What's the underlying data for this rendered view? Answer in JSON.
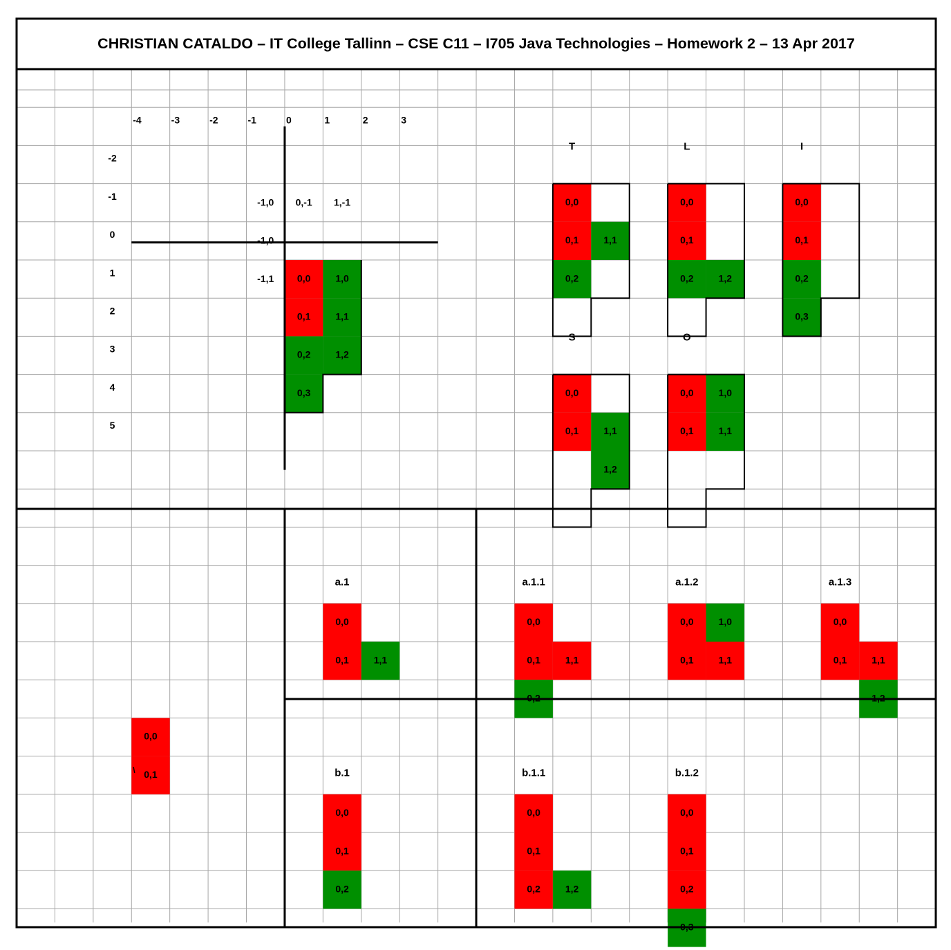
{
  "title": "CHRISTIAN CATALDO – IT College Tallinn – CSE C11 – I705 Java Technologies – Homework 2 – 13 Apr 2017",
  "colors": {
    "red": "#ff0000",
    "green": "#008f00",
    "grid": "#a6a6a6",
    "border": "#000000"
  },
  "axes": {
    "x_ticks": [
      "-4",
      "-3",
      "-2",
      "-1",
      "0",
      "1",
      "2",
      "3"
    ],
    "y_ticks": [
      "-2",
      "-1",
      "0",
      "1",
      "2",
      "3",
      "4",
      "5"
    ]
  },
  "axis_labels": [
    {
      "text": "-1,0",
      "col": 6,
      "row": 4
    },
    {
      "text": "0,-1",
      "col": 7,
      "row": 4
    },
    {
      "text": "1,-1",
      "col": 8,
      "row": 4
    },
    {
      "text": "-1,0",
      "col": 6,
      "row": 5
    },
    {
      "text": "-1,1",
      "col": 6,
      "row": 6
    }
  ],
  "main_piece": [
    {
      "label": "0,0",
      "color": "red",
      "col": 7,
      "row": 5
    },
    {
      "label": "1,0",
      "color": "green",
      "col": 8,
      "row": 5
    },
    {
      "label": "0,1",
      "color": "red",
      "col": 7,
      "row": 6
    },
    {
      "label": "1,1",
      "color": "green",
      "col": 8,
      "row": 6
    },
    {
      "label": "0,2",
      "color": "green",
      "col": 7,
      "row": 7
    },
    {
      "label": "1,2",
      "color": "green",
      "col": 8,
      "row": 7
    },
    {
      "label": "0,3",
      "color": "green",
      "col": 7,
      "row": 8
    }
  ],
  "shapes": [
    {
      "name": "T",
      "title_col": 14,
      "title_row": 2,
      "cells": [
        {
          "label": "0,0",
          "color": "red",
          "col": 14,
          "row": 3
        },
        {
          "label": "0,1",
          "color": "red",
          "col": 14,
          "row": 4
        },
        {
          "label": "1,1",
          "color": "green",
          "col": 15,
          "row": 4
        },
        {
          "label": "0,2",
          "color": "green",
          "col": 14,
          "row": 5
        }
      ]
    },
    {
      "name": "L",
      "title_col": 17,
      "title_row": 2,
      "cells": [
        {
          "label": "0,0",
          "color": "red",
          "col": 17,
          "row": 3
        },
        {
          "label": "0,1",
          "color": "red",
          "col": 17,
          "row": 4
        },
        {
          "label": "0,2",
          "color": "green",
          "col": 17,
          "row": 5
        },
        {
          "label": "1,2",
          "color": "green",
          "col": 18,
          "row": 5
        }
      ]
    },
    {
      "name": "I",
      "title_col": 20,
      "title_row": 2,
      "cells": [
        {
          "label": "0,0",
          "color": "red",
          "col": 20,
          "row": 3
        },
        {
          "label": "0,1",
          "color": "red",
          "col": 20,
          "row": 4
        },
        {
          "label": "0,2",
          "color": "green",
          "col": 20,
          "row": 5
        },
        {
          "label": "0,3",
          "color": "green",
          "col": 20,
          "row": 6
        }
      ]
    },
    {
      "name": "S",
      "title_col": 14,
      "title_row": 7,
      "cells": [
        {
          "label": "0,0",
          "color": "red",
          "col": 14,
          "row": 8
        },
        {
          "label": "0,1",
          "color": "red",
          "col": 14,
          "row": 9
        },
        {
          "label": "1,1",
          "color": "green",
          "col": 15,
          "row": 9
        },
        {
          "label": "1,2",
          "color": "green",
          "col": 15,
          "row": 10
        }
      ]
    },
    {
      "name": "O",
      "title_col": 17,
      "title_row": 7,
      "cells": [
        {
          "label": "0,0",
          "color": "red",
          "col": 17,
          "row": 8
        },
        {
          "label": "1,0",
          "color": "green",
          "col": 18,
          "row": 8
        },
        {
          "label": "0,1",
          "color": "red",
          "col": 17,
          "row": 9
        },
        {
          "label": "1,1",
          "color": "green",
          "col": 18,
          "row": 9
        }
      ]
    }
  ],
  "left_piece": [
    {
      "label": "0,0",
      "color": "red",
      "col": 3,
      "row": 17
    },
    {
      "label": "0,1",
      "color": "red",
      "col": 3,
      "row": 18
    }
  ],
  "stray_mark": "\\",
  "steps": [
    {
      "name": "a.1",
      "title_col": 8,
      "title_row": 13,
      "cells": [
        {
          "label": "0,0",
          "color": "red",
          "col": 8,
          "row": 14
        },
        {
          "label": "0,1",
          "color": "red",
          "col": 8,
          "row": 15
        },
        {
          "label": "1,1",
          "color": "green",
          "col": 9,
          "row": 15
        }
      ]
    },
    {
      "name": "a.1.1",
      "title_col": 13,
      "title_row": 13,
      "cells": [
        {
          "label": "0,0",
          "color": "red",
          "col": 13,
          "row": 14
        },
        {
          "label": "0,1",
          "color": "red",
          "col": 13,
          "row": 15
        },
        {
          "label": "1,1",
          "color": "red",
          "col": 14,
          "row": 15
        },
        {
          "label": "0,2",
          "color": "green",
          "col": 13,
          "row": 16
        }
      ]
    },
    {
      "name": "a.1.2",
      "title_col": 17,
      "title_row": 13,
      "cells": [
        {
          "label": "0,0",
          "color": "red",
          "col": 17,
          "row": 14
        },
        {
          "label": "1,0",
          "color": "green",
          "col": 18,
          "row": 14
        },
        {
          "label": "0,1",
          "color": "red",
          "col": 17,
          "row": 15
        },
        {
          "label": "1,1",
          "color": "red",
          "col": 18,
          "row": 15
        }
      ]
    },
    {
      "name": "a.1.3",
      "title_col": 21,
      "title_row": 13,
      "cells": [
        {
          "label": "0,0",
          "color": "red",
          "col": 21,
          "row": 14
        },
        {
          "label": "0,1",
          "color": "red",
          "col": 21,
          "row": 15
        },
        {
          "label": "1,1",
          "color": "red",
          "col": 22,
          "row": 15
        },
        {
          "label": "1,2",
          "color": "green",
          "col": 22,
          "row": 16
        }
      ]
    },
    {
      "name": "b.1",
      "title_col": 8,
      "title_row": 18,
      "cells": [
        {
          "label": "0,0",
          "color": "red",
          "col": 8,
          "row": 19
        },
        {
          "label": "0,1",
          "color": "red",
          "col": 8,
          "row": 20
        },
        {
          "label": "0,2",
          "color": "green",
          "col": 8,
          "row": 21
        }
      ]
    },
    {
      "name": "b.1.1",
      "title_col": 13,
      "title_row": 18,
      "cells": [
        {
          "label": "0,0",
          "color": "red",
          "col": 13,
          "row": 19
        },
        {
          "label": "0,1",
          "color": "red",
          "col": 13,
          "row": 20
        },
        {
          "label": "0,2",
          "color": "red",
          "col": 13,
          "row": 21
        },
        {
          "label": "1,2",
          "color": "green",
          "col": 14,
          "row": 21
        }
      ]
    },
    {
      "name": "b.1.2",
      "title_col": 17,
      "title_row": 18,
      "cells": [
        {
          "label": "0,0",
          "color": "red",
          "col": 17,
          "row": 19
        },
        {
          "label": "0,1",
          "color": "red",
          "col": 17,
          "row": 20
        },
        {
          "label": "0,2",
          "color": "red",
          "col": 17,
          "row": 21
        },
        {
          "label": "0,3",
          "color": "green",
          "col": 17,
          "row": 22
        }
      ]
    }
  ]
}
